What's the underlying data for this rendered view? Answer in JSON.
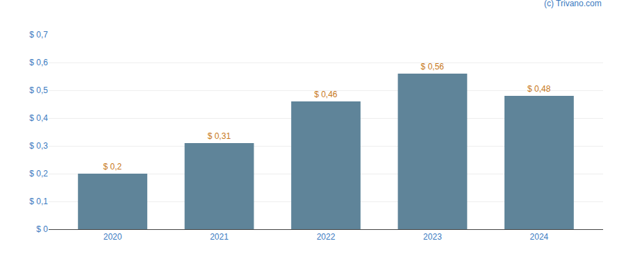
{
  "chart_data": {
    "type": "bar",
    "categories": [
      "2020",
      "2021",
      "2022",
      "2023",
      "2024"
    ],
    "values": [
      0.2,
      0.31,
      0.46,
      0.56,
      0.48
    ],
    "value_labels": [
      "$ 0,2",
      "$ 0,31",
      "$ 0,46",
      "$ 0,56",
      "$ 0,48"
    ],
    "data_labels": true,
    "color": "#5f8499",
    "ylim": [
      0,
      0.7
    ],
    "yticks": [
      {
        "value": 0,
        "label": "$ 0"
      },
      {
        "value": 0.1,
        "label": "$ 0,1"
      },
      {
        "value": 0.2,
        "label": "$ 0,2"
      },
      {
        "value": 0.3,
        "label": "$ 0,3"
      },
      {
        "value": 0.4,
        "label": "$ 0,4"
      },
      {
        "value": 0.5,
        "label": "$ 0,5"
      },
      {
        "value": 0.6,
        "label": "$ 0,6"
      },
      {
        "value": 0.7,
        "label": "$ 0,7"
      }
    ],
    "grid": true,
    "annotations": [
      "(c) Trivano.com"
    ]
  }
}
